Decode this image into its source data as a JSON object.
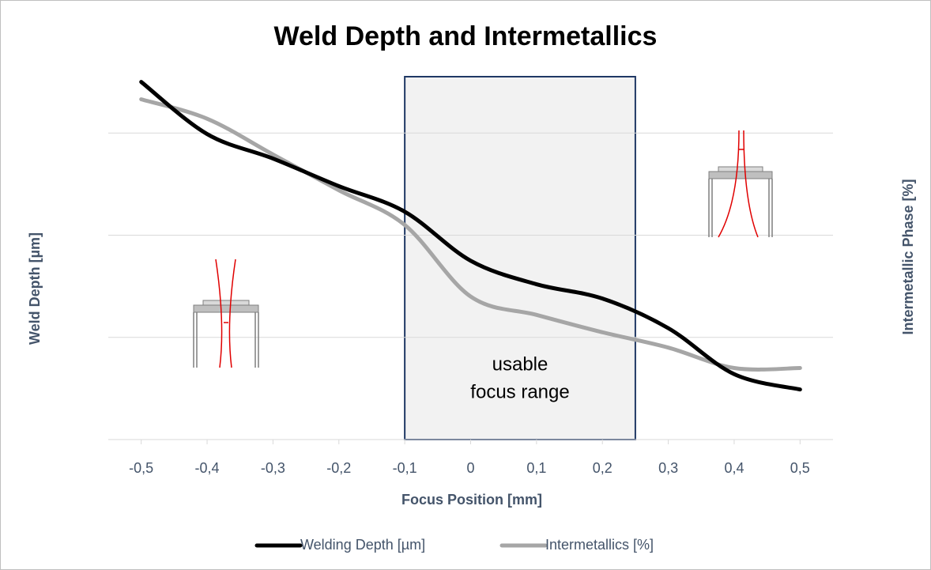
{
  "chart_data": {
    "type": "line",
    "title": "Weld Depth and Intermetallics",
    "x_label": "Focus Position [mm]",
    "y_label": "Weld Depth [µm]",
    "y2_label": "Intermetallic Phase [%]",
    "x": [
      -0.5,
      -0.4,
      -0.3,
      -0.2,
      -0.1,
      0,
      0.1,
      0.2,
      0.3,
      0.4,
      0.5
    ],
    "xlim": [
      -0.55,
      0.55
    ],
    "xticks": [
      {
        "value": -0.5,
        "label": "-0,5"
      },
      {
        "value": -0.4,
        "label": "-0,4"
      },
      {
        "value": -0.3,
        "label": "-0,3"
      },
      {
        "value": -0.2,
        "label": "-0,2"
      },
      {
        "value": -0.1,
        "label": "-0,1"
      },
      {
        "value": 0,
        "label": "0"
      },
      {
        "value": 0.1,
        "label": "0,1"
      },
      {
        "value": 0.2,
        "label": "0,2"
      },
      {
        "value": 0.3,
        "label": "0,3"
      },
      {
        "value": 0.4,
        "label": "0,4"
      },
      {
        "value": 0.5,
        "label": "0,5"
      }
    ],
    "ylim": [
      0,
      4
    ],
    "yticks": [
      1,
      2,
      3
    ],
    "grid": true,
    "series": [
      {
        "name": "Welding Depth [µm]",
        "color": "#000000",
        "values": [
          3.5,
          2.99,
          2.75,
          2.48,
          2.23,
          1.75,
          1.52,
          1.38,
          1.09,
          0.64,
          0.49
        ]
      },
      {
        "name": "Intermetallics [%]",
        "color": "#a6a6a6",
        "values": [
          3.33,
          3.14,
          2.79,
          2.44,
          2.1,
          1.4,
          1.22,
          1.05,
          0.9,
          0.7,
          0.7
        ]
      }
    ],
    "annotation": {
      "text": [
        "usable",
        "focus range"
      ],
      "x_range": [
        -0.1,
        0.25
      ]
    }
  }
}
